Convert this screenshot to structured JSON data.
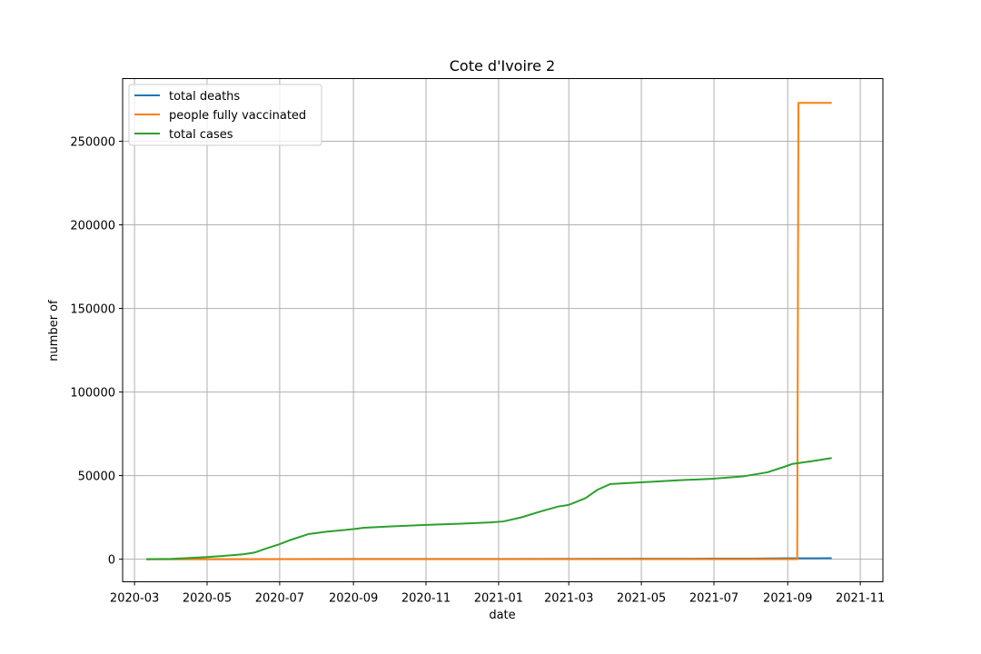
{
  "chart_data": {
    "type": "line",
    "title": "Cote d'Ivoire 2",
    "xlabel": "date",
    "ylabel": "number of",
    "x_type": "date",
    "xlim": [
      "2020-02-20",
      "2021-11-20"
    ],
    "ylim": [
      -13500,
      287500
    ],
    "x_ticks": [
      "2020-03",
      "2020-05",
      "2020-07",
      "2020-09",
      "2020-11",
      "2021-01",
      "2021-03",
      "2021-05",
      "2021-07",
      "2021-09",
      "2021-11"
    ],
    "y_ticks": [
      0,
      50000,
      100000,
      150000,
      200000,
      250000
    ],
    "grid": true,
    "legend_position": "top-left",
    "series": [
      {
        "name": "total deaths",
        "color": "#1f77b4",
        "points": [
          [
            "2020-03-11",
            0
          ],
          [
            "2020-05-01",
            20
          ],
          [
            "2020-07-01",
            100
          ],
          [
            "2020-09-01",
            120
          ],
          [
            "2020-11-01",
            125
          ],
          [
            "2021-01-01",
            140
          ],
          [
            "2021-03-01",
            190
          ],
          [
            "2021-05-01",
            290
          ],
          [
            "2021-07-01",
            320
          ],
          [
            "2021-08-01",
            380
          ],
          [
            "2021-09-01",
            550
          ],
          [
            "2021-10-08",
            630
          ]
        ]
      },
      {
        "name": "people fully vaccinated",
        "color": "#ff7f0e",
        "points": [
          [
            "2020-03-11",
            0
          ],
          [
            "2021-09-09",
            0
          ],
          [
            "2021-09-10",
            273000
          ],
          [
            "2021-10-08",
            273000
          ]
        ]
      },
      {
        "name": "total cases",
        "color": "#2ca02c",
        "points": [
          [
            "2020-03-11",
            0
          ],
          [
            "2020-04-01",
            200
          ],
          [
            "2020-04-15",
            700
          ],
          [
            "2020-05-01",
            1300
          ],
          [
            "2020-05-15",
            2000
          ],
          [
            "2020-06-01",
            3000
          ],
          [
            "2020-06-10",
            4000
          ],
          [
            "2020-06-20",
            6500
          ],
          [
            "2020-07-01",
            9000
          ],
          [
            "2020-07-10",
            11500
          ],
          [
            "2020-07-25",
            15000
          ],
          [
            "2020-08-10",
            16500
          ],
          [
            "2020-09-01",
            18000
          ],
          [
            "2020-09-10",
            18800
          ],
          [
            "2020-10-01",
            19600
          ],
          [
            "2020-11-01",
            20500
          ],
          [
            "2020-12-01",
            21300
          ],
          [
            "2020-12-25",
            22000
          ],
          [
            "2021-01-05",
            22600
          ],
          [
            "2021-01-20",
            25000
          ],
          [
            "2021-02-05",
            28500
          ],
          [
            "2021-02-20",
            31500
          ],
          [
            "2021-03-01",
            32500
          ],
          [
            "2021-03-15",
            36500
          ],
          [
            "2021-03-25",
            41500
          ],
          [
            "2021-04-05",
            45000
          ],
          [
            "2021-05-01",
            46000
          ],
          [
            "2021-06-01",
            47200
          ],
          [
            "2021-07-01",
            48200
          ],
          [
            "2021-07-25",
            49500
          ],
          [
            "2021-08-15",
            52000
          ],
          [
            "2021-08-30",
            55500
          ],
          [
            "2021-09-05",
            57000
          ],
          [
            "2021-09-20",
            58500
          ],
          [
            "2021-10-08",
            60500
          ]
        ]
      }
    ]
  }
}
